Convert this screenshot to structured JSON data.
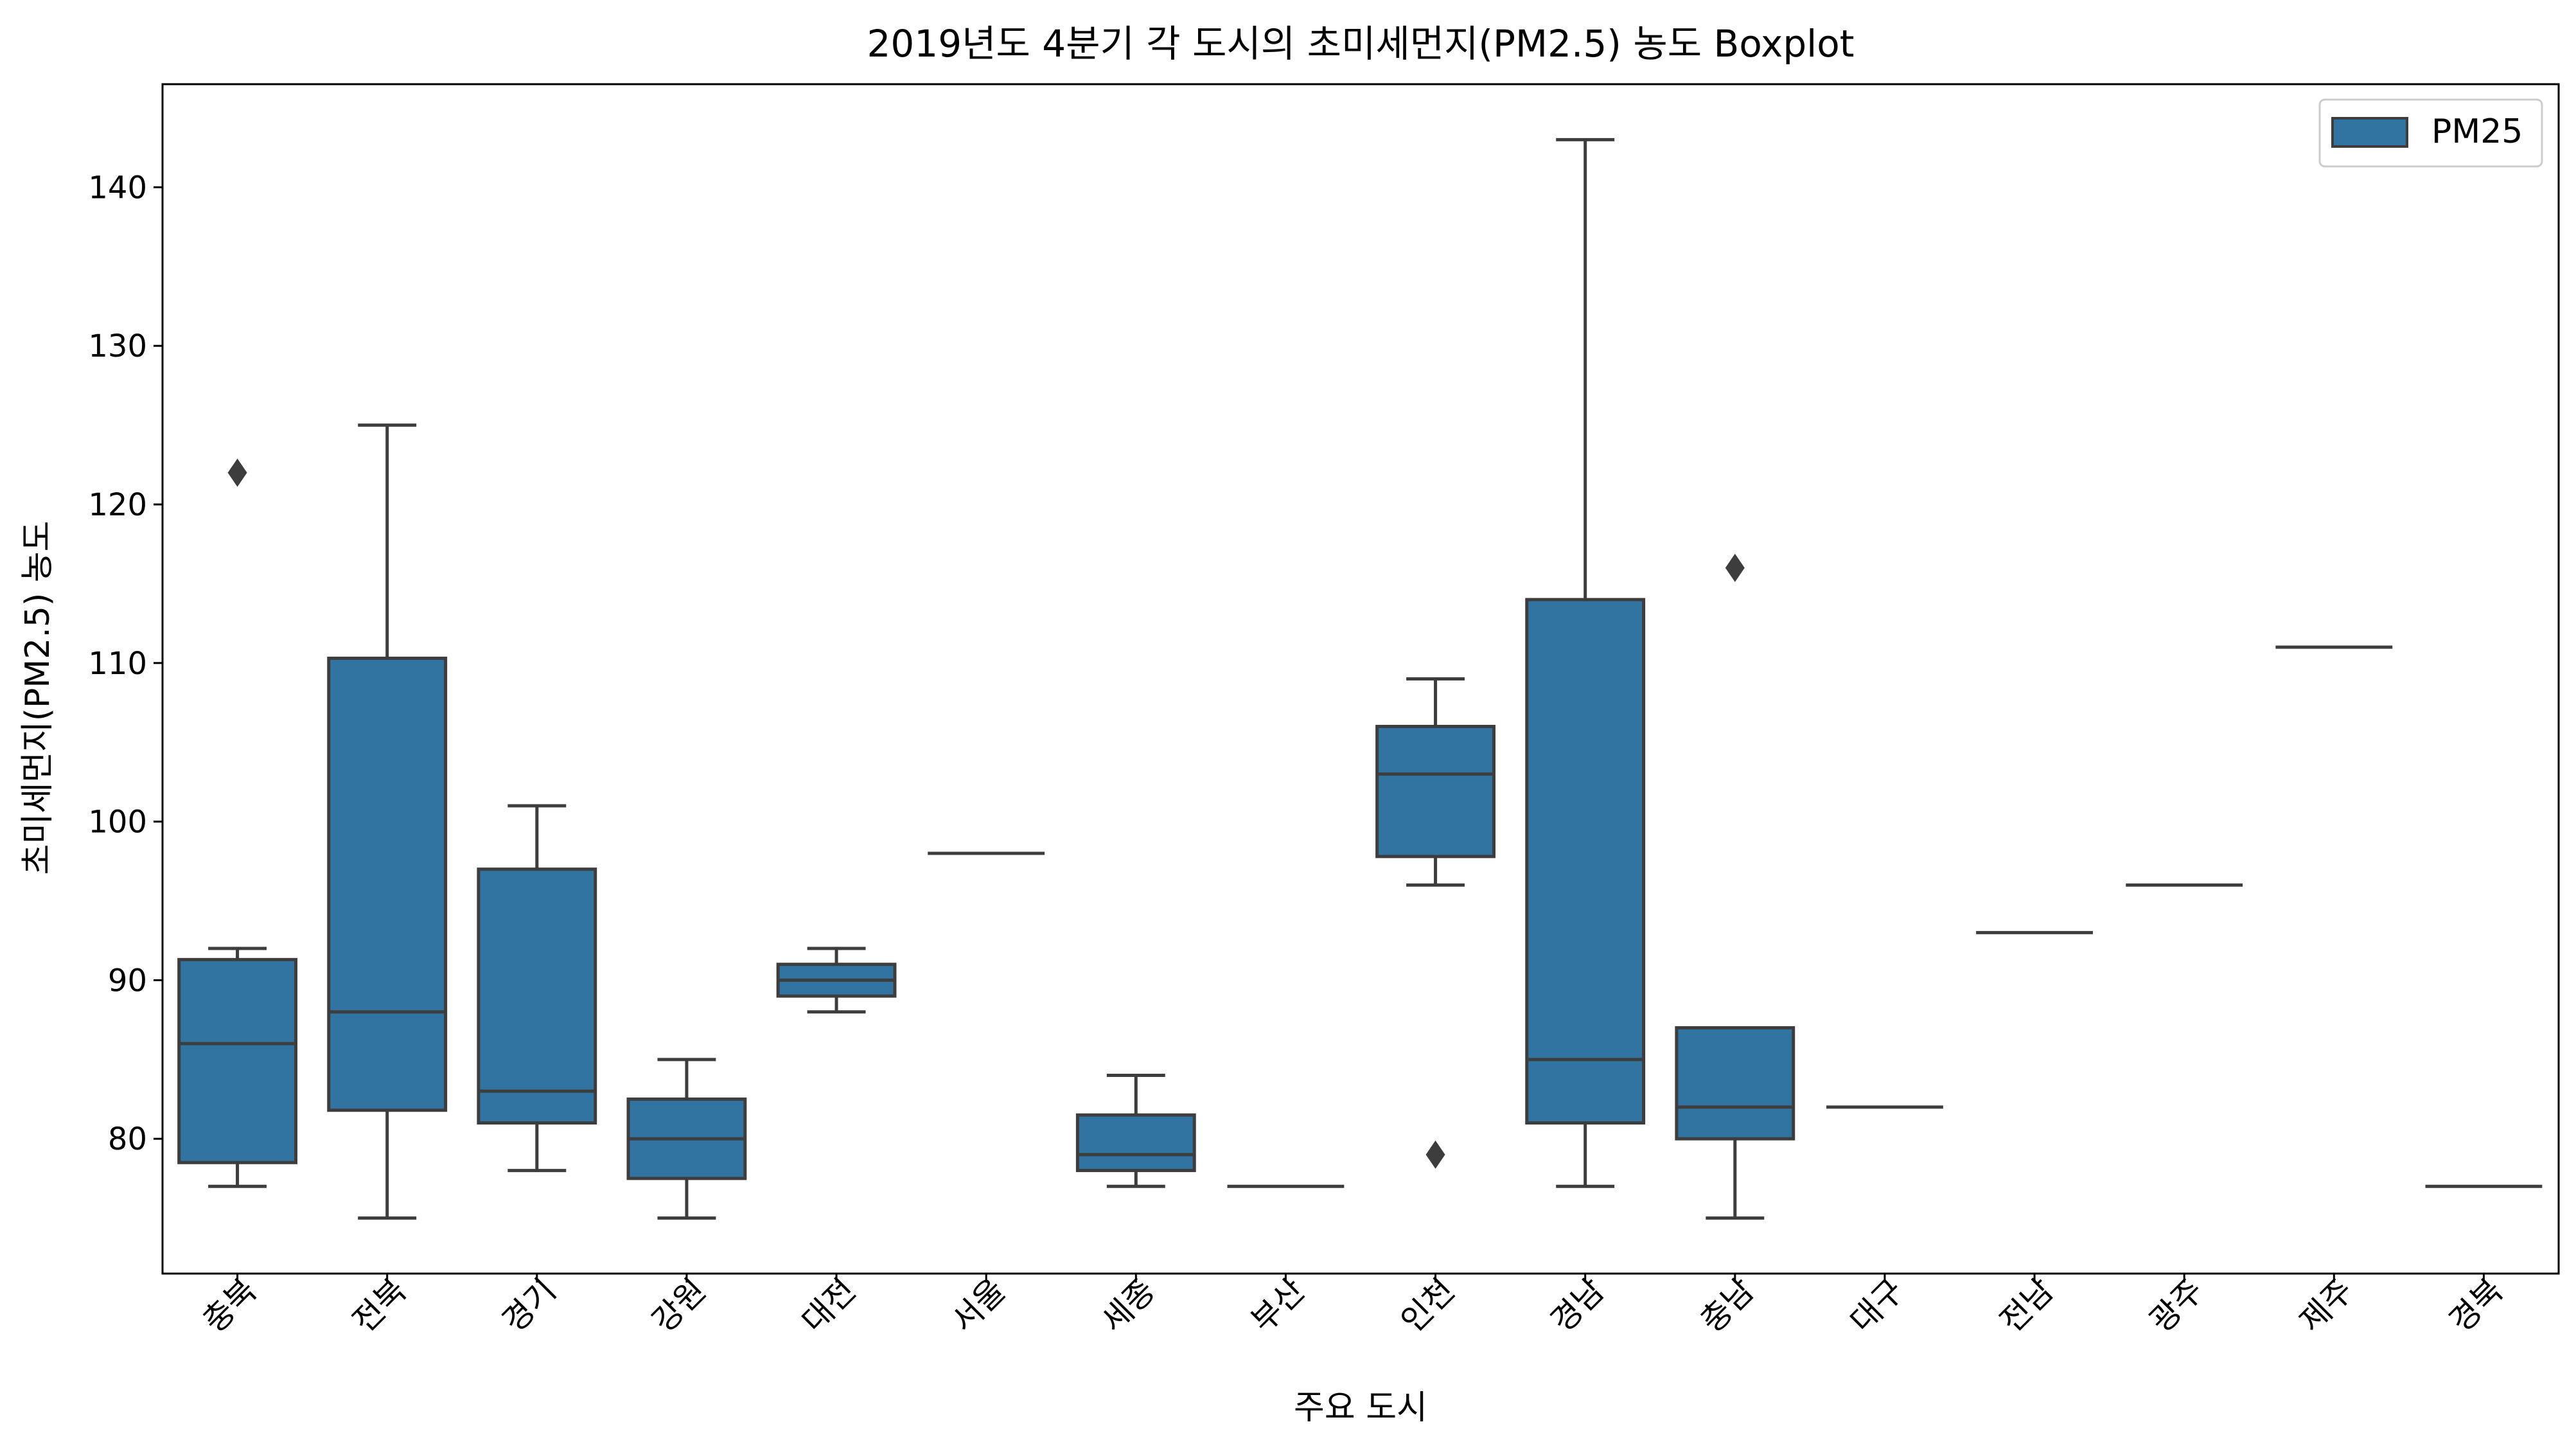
{
  "chart_data": {
    "type": "boxplot",
    "title": "2019년도 4분기 각 도시의 초미세먼지(PM2.5) 농도 Boxplot",
    "xlabel": "주요 도시",
    "ylabel": "초미세먼지(PM2.5) 농도",
    "ylim": [
      71.5,
      146.5
    ],
    "yticks": [
      80,
      90,
      100,
      110,
      120,
      130,
      140
    ],
    "legend": {
      "label": "PM25",
      "position": "top-right"
    },
    "grid": false,
    "colors": {
      "box_fill": "#3274a1",
      "line": "#3d3d3d",
      "axis": "#000000"
    },
    "categories": [
      "충북",
      "전북",
      "경기",
      "강원",
      "대전",
      "서울",
      "세종",
      "부산",
      "인천",
      "경남",
      "충남",
      "대구",
      "전남",
      "광주",
      "제주",
      "경북"
    ],
    "boxes": [
      {
        "q1": 78.5,
        "median": 86,
        "q3": 91.3,
        "whisker_low": 77,
        "whisker_high": 92,
        "outliers": [
          122
        ]
      },
      {
        "q1": 81.8,
        "median": 88,
        "q3": 110.3,
        "whisker_low": 75,
        "whisker_high": 125,
        "outliers": []
      },
      {
        "q1": 81,
        "median": 83,
        "q3": 97,
        "whisker_low": 78,
        "whisker_high": 101,
        "outliers": []
      },
      {
        "q1": 77.5,
        "median": 80,
        "q3": 82.5,
        "whisker_low": 75,
        "whisker_high": 85,
        "outliers": []
      },
      {
        "q1": 89,
        "median": 90,
        "q3": 91,
        "whisker_low": 88,
        "whisker_high": 92,
        "outliers": []
      },
      {
        "q1": 98,
        "median": 98,
        "q3": 98,
        "whisker_low": 98,
        "whisker_high": 98,
        "outliers": []
      },
      {
        "q1": 78,
        "median": 79,
        "q3": 81.5,
        "whisker_low": 77,
        "whisker_high": 84,
        "outliers": []
      },
      {
        "q1": 77,
        "median": 77,
        "q3": 77,
        "whisker_low": 77,
        "whisker_high": 77,
        "outliers": []
      },
      {
        "q1": 97.8,
        "median": 103,
        "q3": 106,
        "whisker_low": 96,
        "whisker_high": 109,
        "outliers": [
          79
        ]
      },
      {
        "q1": 81,
        "median": 85,
        "q3": 114,
        "whisker_low": 77,
        "whisker_high": 143,
        "outliers": []
      },
      {
        "q1": 80,
        "median": 82,
        "q3": 87,
        "whisker_low": 75,
        "whisker_high": 87,
        "outliers": [
          116
        ]
      },
      {
        "q1": 82,
        "median": 82,
        "q3": 82,
        "whisker_low": 82,
        "whisker_high": 82,
        "outliers": []
      },
      {
        "q1": 93,
        "median": 93,
        "q3": 93,
        "whisker_low": 93,
        "whisker_high": 93,
        "outliers": []
      },
      {
        "q1": 96,
        "median": 96,
        "q3": 96,
        "whisker_low": 96,
        "whisker_high": 96,
        "outliers": []
      },
      {
        "q1": 111,
        "median": 111,
        "q3": 111,
        "whisker_low": 111,
        "whisker_high": 111,
        "outliers": []
      },
      {
        "q1": 77,
        "median": 77,
        "q3": 77,
        "whisker_low": 77,
        "whisker_high": 77,
        "outliers": []
      }
    ]
  }
}
